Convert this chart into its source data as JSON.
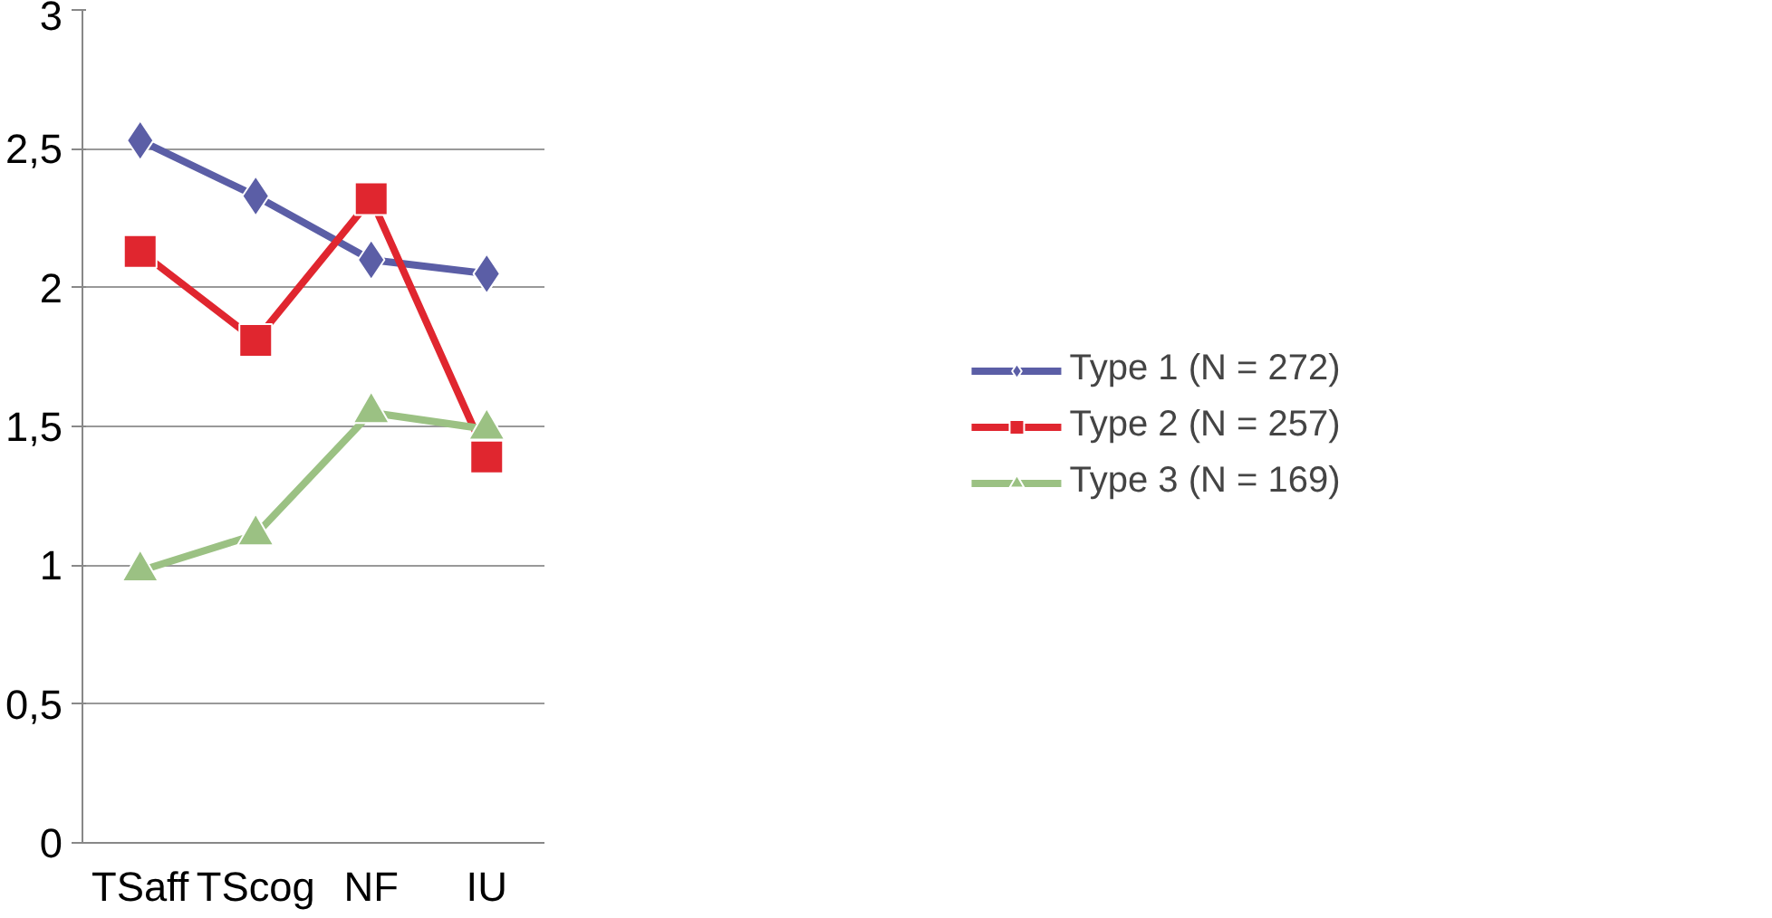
{
  "chart_data": {
    "type": "line",
    "categories": [
      "TSaff",
      "TScog",
      "NF",
      "IU"
    ],
    "series": [
      {
        "name": "Type 1 (N = 272)",
        "color": "#5b5ea6",
        "marker": "diamond",
        "values": [
          2.53,
          2.33,
          2.1,
          2.05
        ]
      },
      {
        "name": "Type 2 (N = 257)",
        "color": "#e0262f",
        "marker": "square",
        "values": [
          2.13,
          1.81,
          2.32,
          1.39
        ]
      },
      {
        "name": "Type 3 (N = 169)",
        "color": "#9bc183",
        "marker": "triangle",
        "values": [
          0.98,
          1.11,
          1.55,
          1.49
        ]
      }
    ],
    "ylim": [
      0,
      3
    ],
    "yticks": [
      0,
      {
        "value": 0.5,
        "label": "0,5"
      },
      1,
      {
        "value": 1.5,
        "label": "1,5"
      },
      2,
      {
        "value": 2.5,
        "label": "2,5"
      },
      3
    ],
    "grid": "y",
    "legend": "right",
    "line_style": "solid"
  }
}
